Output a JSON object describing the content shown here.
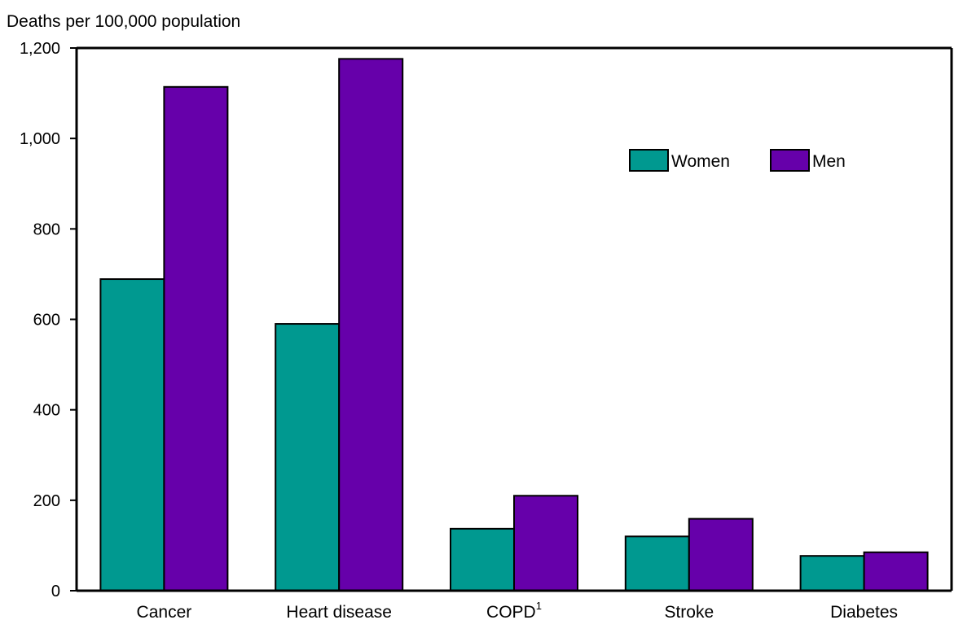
{
  "chart_data": {
    "type": "bar",
    "ylabel": "Deaths per 100,000 population",
    "xlabel": "",
    "ylim": [
      0,
      1200
    ],
    "yticks": [
      0,
      200,
      400,
      600,
      800,
      1000,
      1200
    ],
    "ytick_labels": [
      "0",
      "200",
      "400",
      "600",
      "800",
      "1,000",
      "1,200"
    ],
    "categories": [
      "Cancer",
      "Heart disease",
      "COPD",
      "Stroke",
      "Diabetes"
    ],
    "category_footnotes": [
      "",
      "",
      "1",
      "",
      ""
    ],
    "series": [
      {
        "name": "Women",
        "color": "#009990",
        "values": [
          689,
          590,
          137,
          120,
          77
        ]
      },
      {
        "name": "Men",
        "color": "#6600aa",
        "values": [
          1114,
          1176,
          210,
          159,
          85
        ]
      }
    ],
    "legend_position": "top-right",
    "grid": false
  }
}
